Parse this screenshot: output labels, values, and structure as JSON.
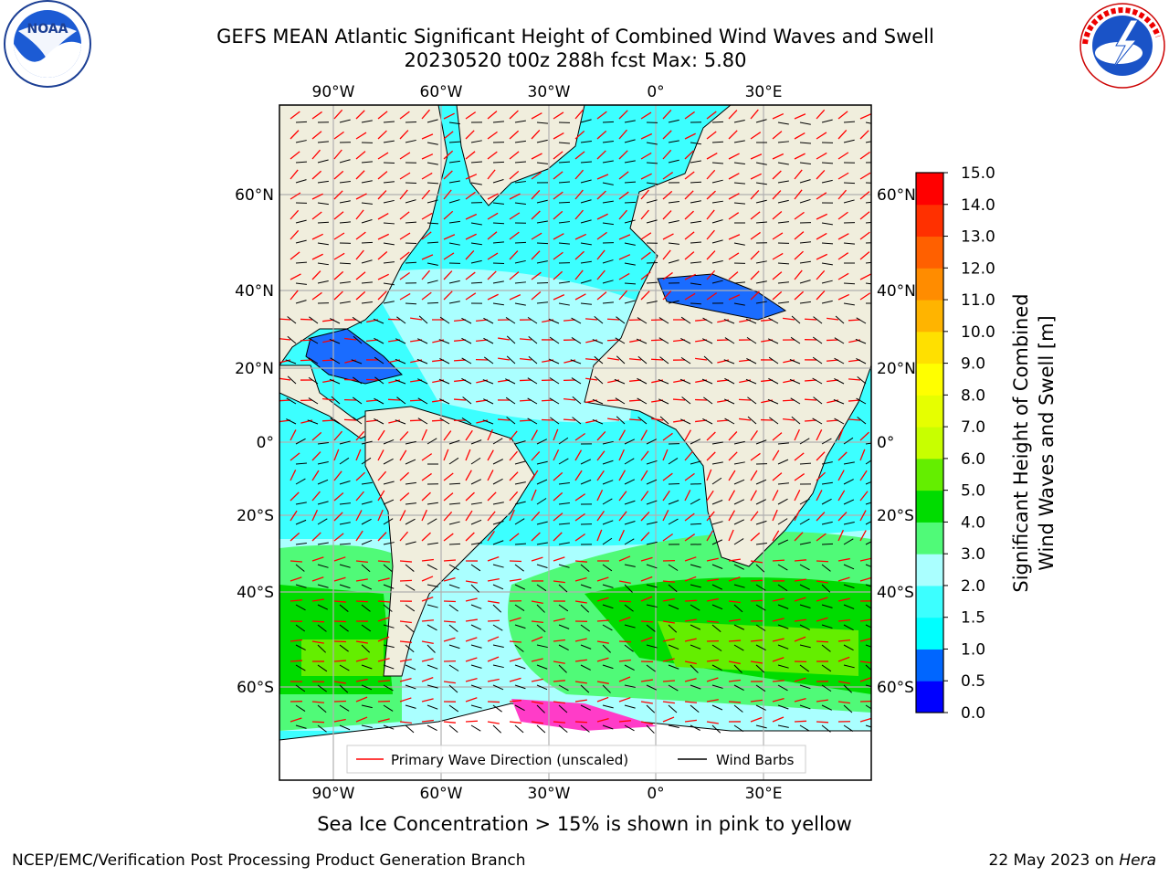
{
  "header": {
    "title_line1": "GEFS MEAN Atlantic Significant Height of Combined Wind Waves and Swell",
    "title_line2": "20230520 t00z 288h fcst   Max: 5.80"
  },
  "logos": {
    "left": {
      "name": "noaa-logo",
      "text": "NOAA",
      "ring_text": "NATIONAL OCEANIC AND ATMOSPHERIC ADMINISTRATION · U.S. DEPARTMENT OF COMMERCE"
    },
    "right": {
      "name": "nws-logo",
      "ring_text": "NATIONAL WEATHER SERVICE"
    }
  },
  "map": {
    "x_ticks": [
      "90°W",
      "60°W",
      "30°W",
      "0°",
      "30°E"
    ],
    "y_ticks": [
      "60°N",
      "40°N",
      "20°N",
      "0°",
      "20°S",
      "40°S",
      "60°S"
    ],
    "legend": {
      "wave_direction": "Primary Wave Direction (unscaled)",
      "wind_barbs": "Wind Barbs"
    },
    "colors": {
      "land": "#f0eedd",
      "ocean_mid": "#aaffff",
      "ocean_high": "#00ffee",
      "arrow": "#ff0000",
      "barb": "#000000"
    }
  },
  "colorbar": {
    "label_line1": "Significant Height of Combined",
    "label_line2": "Wind Waves and Swell [m]",
    "ticks": [
      "0.0",
      "0.5",
      "1.0",
      "1.5",
      "2.0",
      "3.0",
      "4.0",
      "5.0",
      "6.0",
      "7.0",
      "8.0",
      "9.0",
      "10.0",
      "11.0",
      "12.0",
      "13.0",
      "14.0",
      "15.0"
    ],
    "colors": [
      "#0000ff",
      "#0066ff",
      "#00ffff",
      "#3cffff",
      "#aaffff",
      "#50fa78",
      "#00dc00",
      "#64ee00",
      "#c8ff00",
      "#e6ff00",
      "#ffff00",
      "#ffe000",
      "#ffb400",
      "#ff8c00",
      "#ff6000",
      "#ff3000",
      "#ff0000"
    ]
  },
  "notes": {
    "sea_ice": "Sea Ice Concentration > 15% is shown in pink to yellow"
  },
  "footer": {
    "left": "NCEP/EMC/Verification Post Processing Product Generation Branch",
    "right_date": "22 May 2023 on ",
    "right_host": "Hera"
  }
}
